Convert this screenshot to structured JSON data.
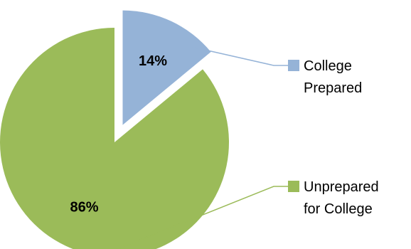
{
  "chart_data": {
    "type": "pie",
    "title": "",
    "legend_position": "right",
    "exploded": true,
    "slices": [
      {
        "label_lines": [
          "College",
          "Prepared"
        ],
        "value": 14,
        "data_label": "14%",
        "color": "#95b3d7"
      },
      {
        "label_lines": [
          "Unprepared",
          "for College"
        ],
        "value": 86,
        "data_label": "86%",
        "color": "#9bbb59"
      }
    ]
  }
}
